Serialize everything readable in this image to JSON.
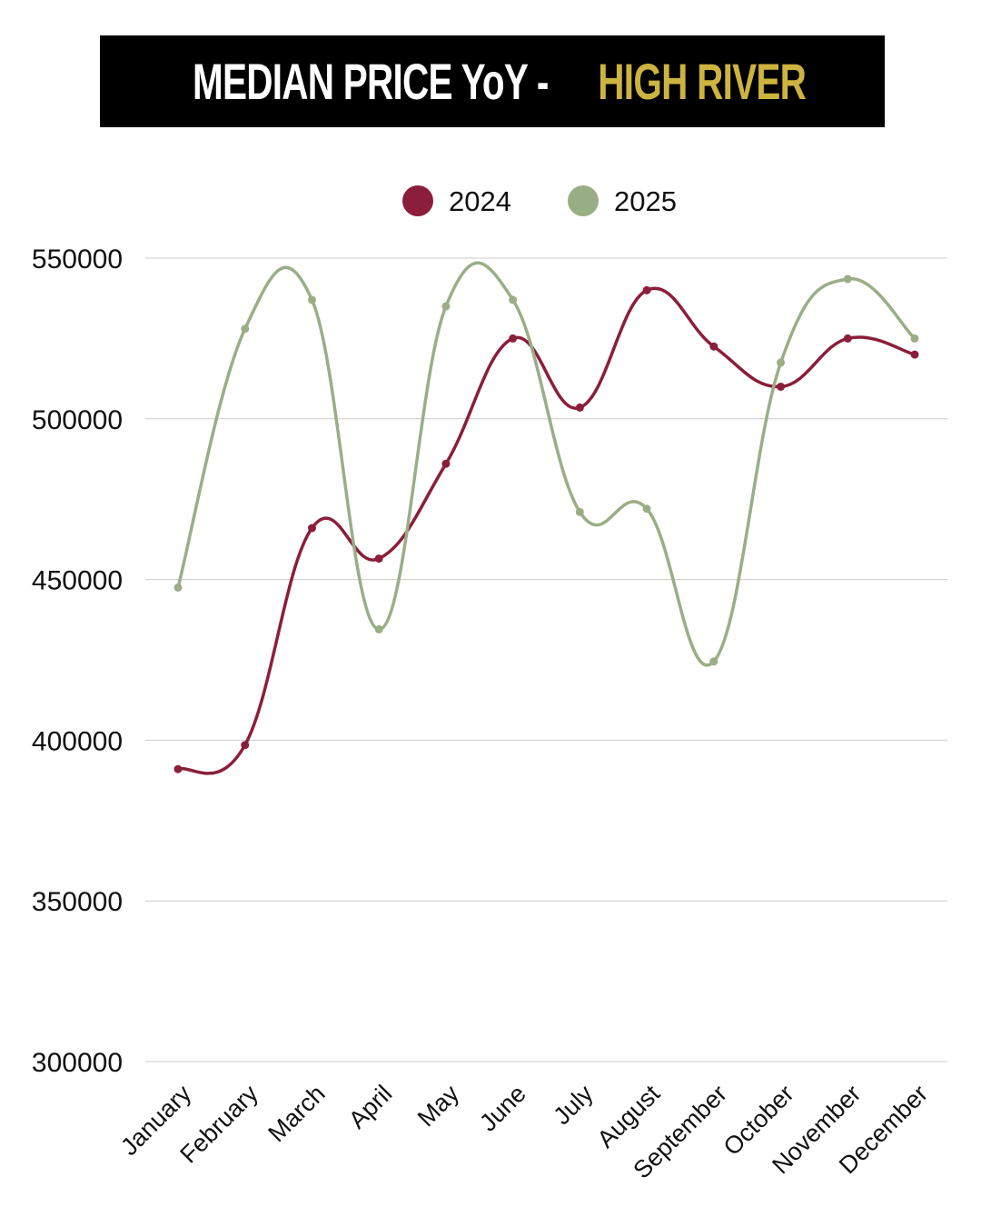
{
  "title": {
    "main": "MEDIAN PRICE YoY - ",
    "highlight": "HIGH RIVER"
  },
  "colors": {
    "title_bg": "#000000",
    "highlight": "#cdb33f",
    "s2024": "#8b1e3a",
    "s2025": "#9aae86",
    "grid": "#cccccc"
  },
  "chart_data": {
    "type": "line",
    "title": "MEDIAN PRICE YoY - HIGH RIVER",
    "categories": [
      "January",
      "February",
      "March",
      "April",
      "May",
      "June",
      "July",
      "August",
      "September",
      "October",
      "November",
      "December"
    ],
    "series": [
      {
        "name": "2024",
        "color": "#8b1e3a",
        "values": [
          391000,
          398500,
          466000,
          456500,
          486000,
          525000,
          503500,
          540000,
          522500,
          510000,
          525000,
          520000
        ]
      },
      {
        "name": "2025",
        "color": "#9aae86",
        "values": [
          447500,
          528000,
          537000,
          434500,
          535000,
          537000,
          471000,
          472000,
          424500,
          517500,
          543500,
          525000
        ]
      }
    ],
    "ylim": [
      300000,
      550000
    ],
    "yticks": [
      300000,
      350000,
      400000,
      450000,
      500000,
      550000
    ],
    "grid": true,
    "legend": "top",
    "smooth": true
  }
}
